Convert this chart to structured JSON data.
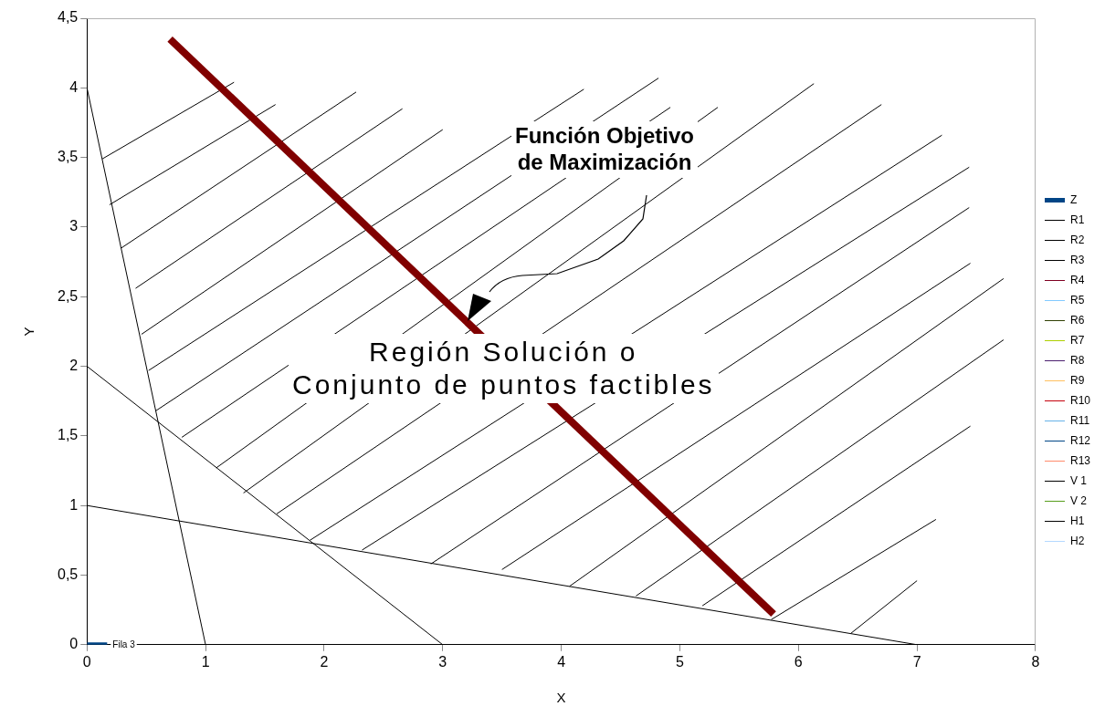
{
  "chart_data": {
    "type": "line",
    "xlabel": "X",
    "ylabel": "Y",
    "xlim": [
      0,
      8
    ],
    "ylim": [
      0,
      4.5
    ],
    "xticks": [
      0,
      1,
      2,
      3,
      4,
      5,
      6,
      7,
      8
    ],
    "yticks": [
      0,
      {
        "value": 0.5,
        "label": "0,5"
      },
      1,
      {
        "value": 1.5,
        "label": "1,5"
      },
      2,
      {
        "value": 2.5,
        "label": "2,5"
      },
      3,
      {
        "value": 3.5,
        "label": "3,5"
      },
      4,
      {
        "value": 4.5,
        "label": "4,5"
      }
    ],
    "grid": false,
    "legend": "right",
    "marker": "none",
    "annotations": [
      "Función Objetivo\nde Maximización",
      "Región Solución o\nConjunto de puntos factibles",
      {
        "text": "Fila 3",
        "x": 0.17,
        "y": 0
      }
    ],
    "series": [
      {
        "name": "Z",
        "color": "#004586",
        "x": [
          0,
          0.17
        ],
        "values": [
          0,
          0
        ]
      },
      {
        "color": "#800000",
        "x": [
          0.7,
          5.79
        ],
        "values": [
          4.35,
          0.22
        ]
      },
      {
        "name": "R1",
        "color": "#000000",
        "x": [
          0,
          1
        ],
        "values": [
          4,
          0
        ]
      },
      {
        "name": "R2",
        "color": "#000000",
        "x": [
          0,
          3
        ],
        "values": [
          2,
          0
        ]
      },
      {
        "name": "R3",
        "color": "#000000",
        "x": [
          0,
          7
        ],
        "values": [
          1,
          0
        ]
      },
      {
        "name": "R4",
        "color": "#7e0021"
      },
      {
        "name": "R5",
        "color": "#83caff"
      },
      {
        "name": "R6",
        "color": "#314004"
      },
      {
        "name": "R7",
        "color": "#aecf00"
      },
      {
        "name": "R8",
        "color": "#4b1f6f"
      },
      {
        "name": "R9",
        "color": "#ffbf5f"
      },
      {
        "name": "R10",
        "color": "#c5000b"
      },
      {
        "name": "R11",
        "color": "#66b2e8"
      },
      {
        "name": "R12",
        "color": "#004586"
      },
      {
        "name": "R13",
        "color": "#ff8a6b"
      },
      {
        "name": "V 1",
        "color": "#000000"
      },
      {
        "name": "V 2",
        "color": "#579d1c"
      },
      {
        "name": "H1",
        "color": "#000000"
      },
      {
        "name": "H2",
        "color": "#b4d8ff"
      },
      {
        "color": "#000000",
        "x": [
          0.13,
          1.24
        ],
        "values": [
          3.49,
          4.04
        ]
      },
      {
        "color": "#000000",
        "x": [
          0.19,
          1.59
        ],
        "values": [
          3.16,
          3.88
        ]
      },
      {
        "color": "#000000",
        "x": [
          0.29,
          2.27
        ],
        "values": [
          2.85,
          3.97
        ]
      },
      {
        "color": "#000000",
        "x": [
          0.41,
          2.66
        ],
        "values": [
          2.56,
          3.85
        ]
      },
      {
        "color": "#000000",
        "x": [
          0.46,
          3.0
        ],
        "values": [
          2.23,
          3.7
        ]
      },
      {
        "color": "#000000",
        "x": [
          0.52,
          4.19
        ],
        "values": [
          1.97,
          3.99
        ]
      },
      {
        "color": "#000000",
        "x": [
          0.58,
          4.82
        ],
        "values": [
          1.68,
          4.07
        ]
      },
      {
        "color": "#000000",
        "x": [
          0.8,
          4.92
        ],
        "values": [
          1.49,
          3.86
        ]
      },
      {
        "color": "#000000",
        "x": [
          1.09,
          5.32
        ],
        "values": [
          1.27,
          3.86
        ]
      },
      {
        "color": "#000000",
        "x": [
          1.32,
          6.13
        ],
        "values": [
          1.09,
          4.03
        ]
      },
      {
        "color": "#000000",
        "x": [
          1.6,
          6.7
        ],
        "values": [
          0.94,
          3.88
        ]
      },
      {
        "color": "#000000",
        "x": [
          1.88,
          7.21
        ],
        "values": [
          0.75,
          3.66
        ]
      },
      {
        "color": "#000000",
        "x": [
          2.32,
          7.44
        ],
        "values": [
          0.68,
          3.43
        ]
      },
      {
        "color": "#000000",
        "x": [
          2.9,
          7.44
        ],
        "values": [
          0.58,
          3.14
        ]
      },
      {
        "color": "#000000",
        "x": [
          3.5,
          7.45
        ],
        "values": [
          0.54,
          2.74
        ]
      },
      {
        "color": "#000000",
        "x": [
          4.07,
          7.73
        ],
        "values": [
          0.42,
          2.63
        ]
      },
      {
        "color": "#000000",
        "x": [
          4.63,
          7.73
        ],
        "values": [
          0.35,
          2.19
        ]
      },
      {
        "color": "#000000",
        "x": [
          5.19,
          7.45
        ],
        "values": [
          0.28,
          1.57
        ]
      },
      {
        "color": "#000000",
        "x": [
          5.77,
          7.16
        ],
        "values": [
          0.18,
          0.9
        ]
      },
      {
        "color": "#000000",
        "x": [
          6.44,
          7.0
        ],
        "values": [
          0.08,
          0.46
        ]
      }
    ]
  }
}
